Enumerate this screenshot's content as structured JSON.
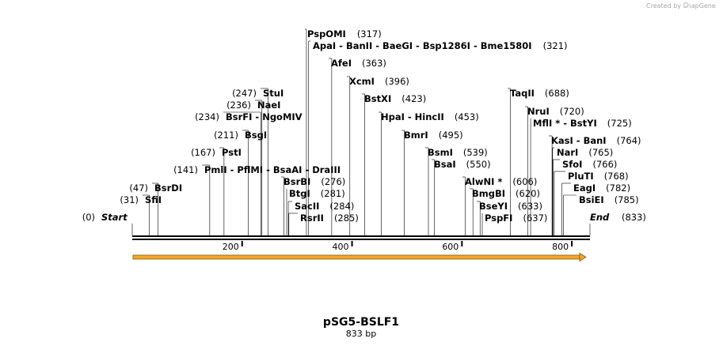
{
  "watermark": "Created by SnapGene",
  "title": "pSG5-BSLF1",
  "subtitle": "833 bp",
  "length": 833,
  "colors": {
    "feature": "#f5a623",
    "featureDark": "#8a5a14",
    "backbone": "#000000",
    "siteLine": "#000000"
  },
  "axis_ticks": [
    200,
    400,
    600,
    800
  ],
  "start_label": {
    "name": "Start",
    "pos": "(0)"
  },
  "end_label": {
    "name": "End",
    "pos": "(833)"
  },
  "left_labels": [
    {
      "names": "PspOMI",
      "pos": "(317)",
      "cut": 317
    },
    {
      "names": "ApaI  -  BanII  -  BaeGI  -  Bsp1286I  -  Bme1580I",
      "pos": "(321)",
      "cut": 321
    },
    {
      "names": "StuI",
      "pos": "(247)",
      "cut": 247
    },
    {
      "names": "NaeI",
      "pos": "(236)",
      "cut": 236
    },
    {
      "names": "BsrFI  -  NgoMIV",
      "pos": "(234)",
      "cut": 234
    },
    {
      "names": "BsgI",
      "pos": "(211)",
      "cut": 211
    },
    {
      "names": "PstI",
      "pos": "(167)",
      "cut": 167
    },
    {
      "names": "PmlI  -  PflMI  -  BsaAI  -  DraIII",
      "pos": "(141)",
      "cut": 141
    },
    {
      "names": "BsrDI",
      "pos": "(47)",
      "cut": 47
    },
    {
      "names": "SfiI",
      "pos": "(31)",
      "cut": 31
    }
  ],
  "right_labels": [
    {
      "names": "AfeI",
      "pos": "(363)",
      "cut": 363
    },
    {
      "names": "XcmI",
      "pos": "(396)",
      "cut": 396
    },
    {
      "names": "BstXI",
      "pos": "(423)",
      "cut": 423
    },
    {
      "names": "HpaI  -  HincII",
      "pos": "(453)",
      "cut": 453
    },
    {
      "names": "BmrI",
      "pos": "(495)",
      "cut": 495
    },
    {
      "names": "BsmI",
      "pos": "(539)",
      "cut": 539
    },
    {
      "names": "BsaI",
      "pos": "(550)",
      "cut": 550
    },
    {
      "names": "BsrBI",
      "pos": "(276)",
      "cut": 276
    },
    {
      "names": "BtgI",
      "pos": "(281)",
      "cut": 281
    },
    {
      "names": "SacII",
      "pos": "(284)",
      "cut": 284
    },
    {
      "names": "RsrII",
      "pos": "(285)",
      "cut": 285
    },
    {
      "names": "TaqII",
      "pos": "(688)",
      "cut": 688
    },
    {
      "names": "NruI",
      "pos": "(720)",
      "cut": 720
    },
    {
      "names": "MflI *  -  BstYI",
      "pos": "(725)",
      "cut": 725
    },
    {
      "names": "KasI  -  BanI",
      "pos": "(764)",
      "cut": 764
    },
    {
      "names": "NarI",
      "pos": "(765)",
      "cut": 765
    },
    {
      "names": "SfoI",
      "pos": "(766)",
      "cut": 766
    },
    {
      "names": "PluTI",
      "pos": "(768)",
      "cut": 768
    },
    {
      "names": "EagI",
      "pos": "(782)",
      "cut": 782
    },
    {
      "names": "BsiEI",
      "pos": "(785)",
      "cut": 785
    },
    {
      "names": "AlwNI *",
      "pos": "(606)",
      "cut": 606
    },
    {
      "names": "BmgBI",
      "pos": "(620)",
      "cut": 620
    },
    {
      "names": "BseYI",
      "pos": "(633)",
      "cut": 633
    },
    {
      "names": "PspFI",
      "pos": "(637)",
      "cut": 637
    }
  ]
}
